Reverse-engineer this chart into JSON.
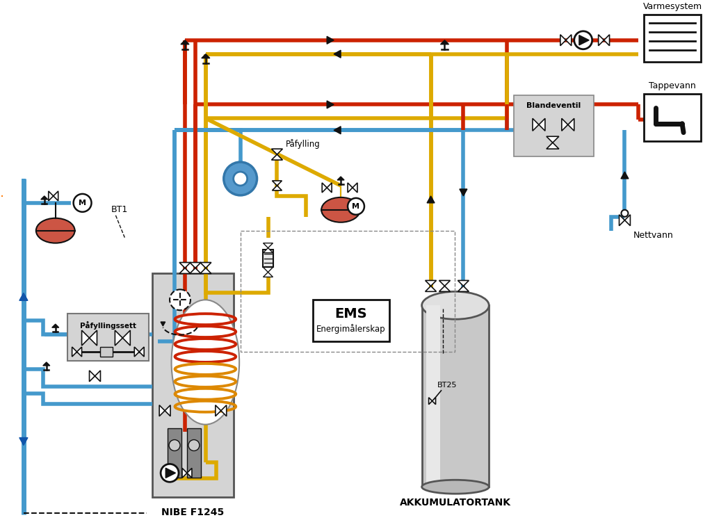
{
  "bg_color": "#ffffff",
  "RED": "#cc2200",
  "BLUE": "#4499cc",
  "YELLOW": "#ddaa00",
  "BLACK": "#111111",
  "LGRAY": "#d4d4d4",
  "MGRAY": "#b8b8b8",
  "DGRAY": "#888888",
  "label_nibe": "NIBE F1245",
  "label_akku": "AKKUMULATORTANK",
  "label_varme": "Varmesystem",
  "label_tappevann": "Tappevann",
  "label_nettvann": "Nettvann",
  "label_bt1": "BT1",
  "label_bt25": "BT25",
  "label_pafylling": "Påfylling",
  "label_pafyllingssett": "Påfyllingssett",
  "label_blandeventil": "Blandeventil",
  "label_ems": "EMS",
  "label_energimalerskap": "Energimålerskap"
}
